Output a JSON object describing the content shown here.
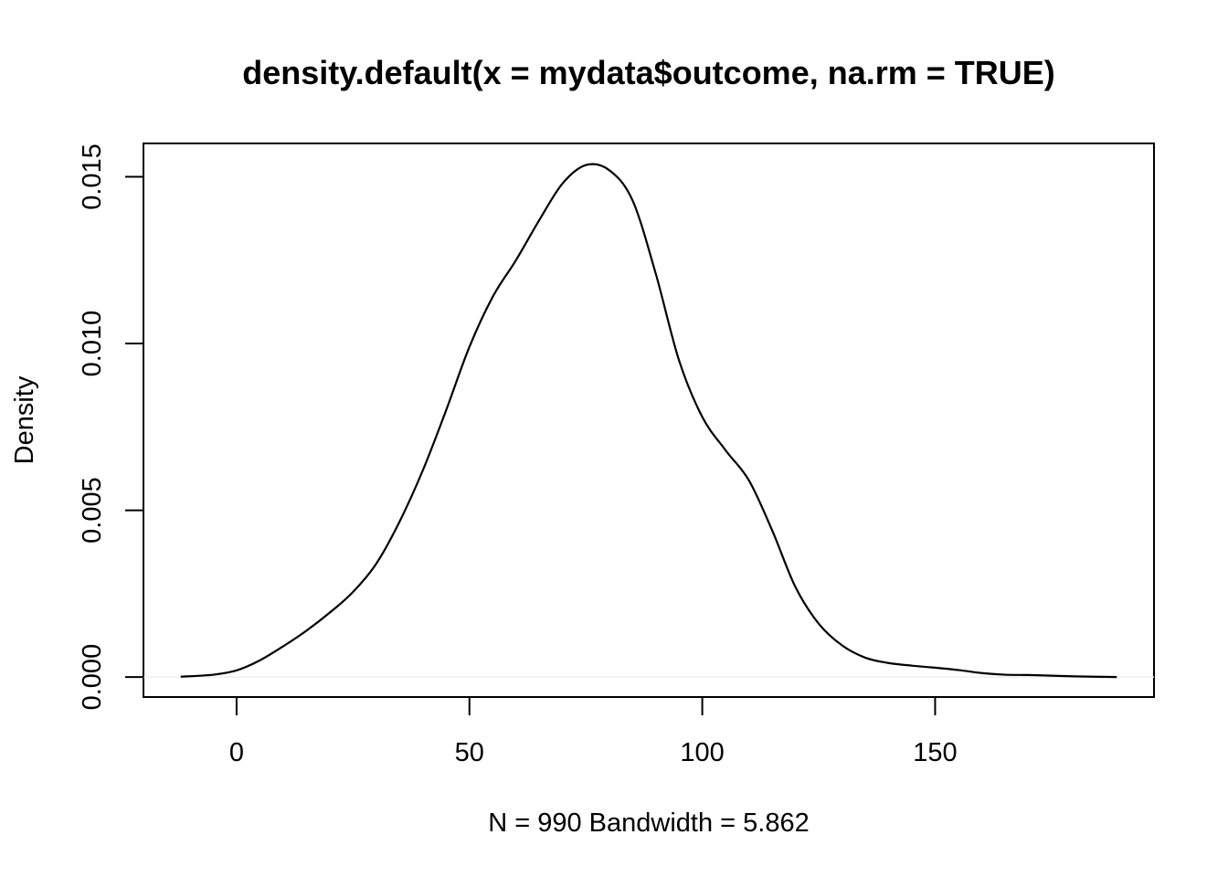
{
  "chart_data": {
    "type": "line",
    "title": "density.default(x = mydata$outcome, na.rm = TRUE)",
    "xlabel": "N = 990   Bandwidth = 5.862",
    "ylabel": "Density",
    "xlim": [
      -20,
      197
    ],
    "ylim": [
      -0.0006,
      0.016
    ],
    "x_ticks": [
      0,
      50,
      100,
      150
    ],
    "x_tick_labels": [
      "0",
      "50",
      "100",
      "150"
    ],
    "y_ticks": [
      0.0,
      0.005,
      0.01,
      0.015
    ],
    "y_tick_labels": [
      "0.000",
      "0.005",
      "0.010",
      "0.015"
    ],
    "grid": false,
    "zero_line": true,
    "series": [
      {
        "color": "#000000",
        "x": [
          -12,
          -5,
          0,
          5,
          10,
          15,
          20,
          25,
          30,
          35,
          40,
          45,
          50,
          55,
          60,
          65,
          70,
          75,
          80,
          85,
          90,
          95,
          100,
          105,
          110,
          115,
          120,
          125,
          130,
          135,
          140,
          145,
          150,
          155,
          160,
          165,
          170,
          175,
          180,
          189
        ],
        "y": [
          1e-05,
          7e-05,
          0.0002,
          0.0005,
          0.00092,
          0.00139,
          0.00193,
          0.00255,
          0.0034,
          0.00466,
          0.0062,
          0.008,
          0.0099,
          0.0114,
          0.0125,
          0.0137,
          0.0148,
          0.01535,
          0.0152,
          0.0143,
          0.0121,
          0.0095,
          0.0078,
          0.0068,
          0.0059,
          0.0044,
          0.0027,
          0.0016,
          0.00095,
          0.00058,
          0.00042,
          0.00034,
          0.00028,
          0.00021,
          0.00012,
          7e-05,
          6e-05,
          4e-05,
          2e-05,
          0.0
        ]
      }
    ]
  }
}
